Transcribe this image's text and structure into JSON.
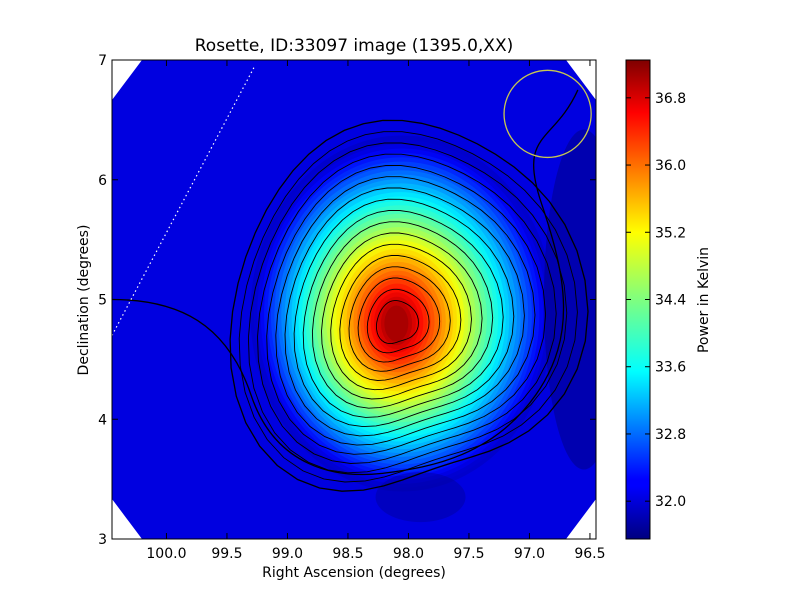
{
  "chart_data": {
    "type": "heatmap",
    "title": "Rosette, ID:33097 image (1395.0,XX)",
    "xlabel": "Right Ascension (degrees)",
    "ylabel": "Declination (degrees)",
    "xlim": [
      100.45,
      96.45
    ],
    "ylim": [
      3,
      7
    ],
    "x_ticks": [
      100.0,
      99.5,
      99.0,
      98.5,
      98.0,
      97.5,
      97.0,
      96.5
    ],
    "x_tick_labels": [
      "100.0",
      "99.5",
      "99.0",
      "98.5",
      "98.0",
      "97.5",
      "97.0",
      "96.5"
    ],
    "y_ticks": [
      3,
      4,
      5,
      6,
      7
    ],
    "y_tick_labels": [
      "3",
      "4",
      "5",
      "6",
      "7"
    ],
    "colorbar": {
      "label": "Power in Kelvin",
      "range": [
        31.55,
        37.25
      ],
      "colormap": "jet",
      "ticks": [
        32.0,
        32.8,
        33.6,
        34.4,
        35.2,
        36.0,
        36.8
      ],
      "tick_labels": [
        "32.0",
        "32.8",
        "33.6",
        "34.4",
        "35.2",
        "36.0",
        "36.8"
      ]
    },
    "peak": {
      "ra": 98.1,
      "dec": 4.8,
      "value": 37.1
    },
    "background_level": 31.9,
    "contour_count": 17,
    "beam_circle": {
      "ra": 96.85,
      "dec": 6.55,
      "radius_deg": 0.36,
      "color": "#c8c850"
    },
    "galactic_plane_line": {
      "style": "dotted",
      "color": "#ffffff",
      "from": [
        100.45,
        4.7
      ],
      "to": [
        99.27,
        6.95
      ]
    },
    "grid": false
  }
}
